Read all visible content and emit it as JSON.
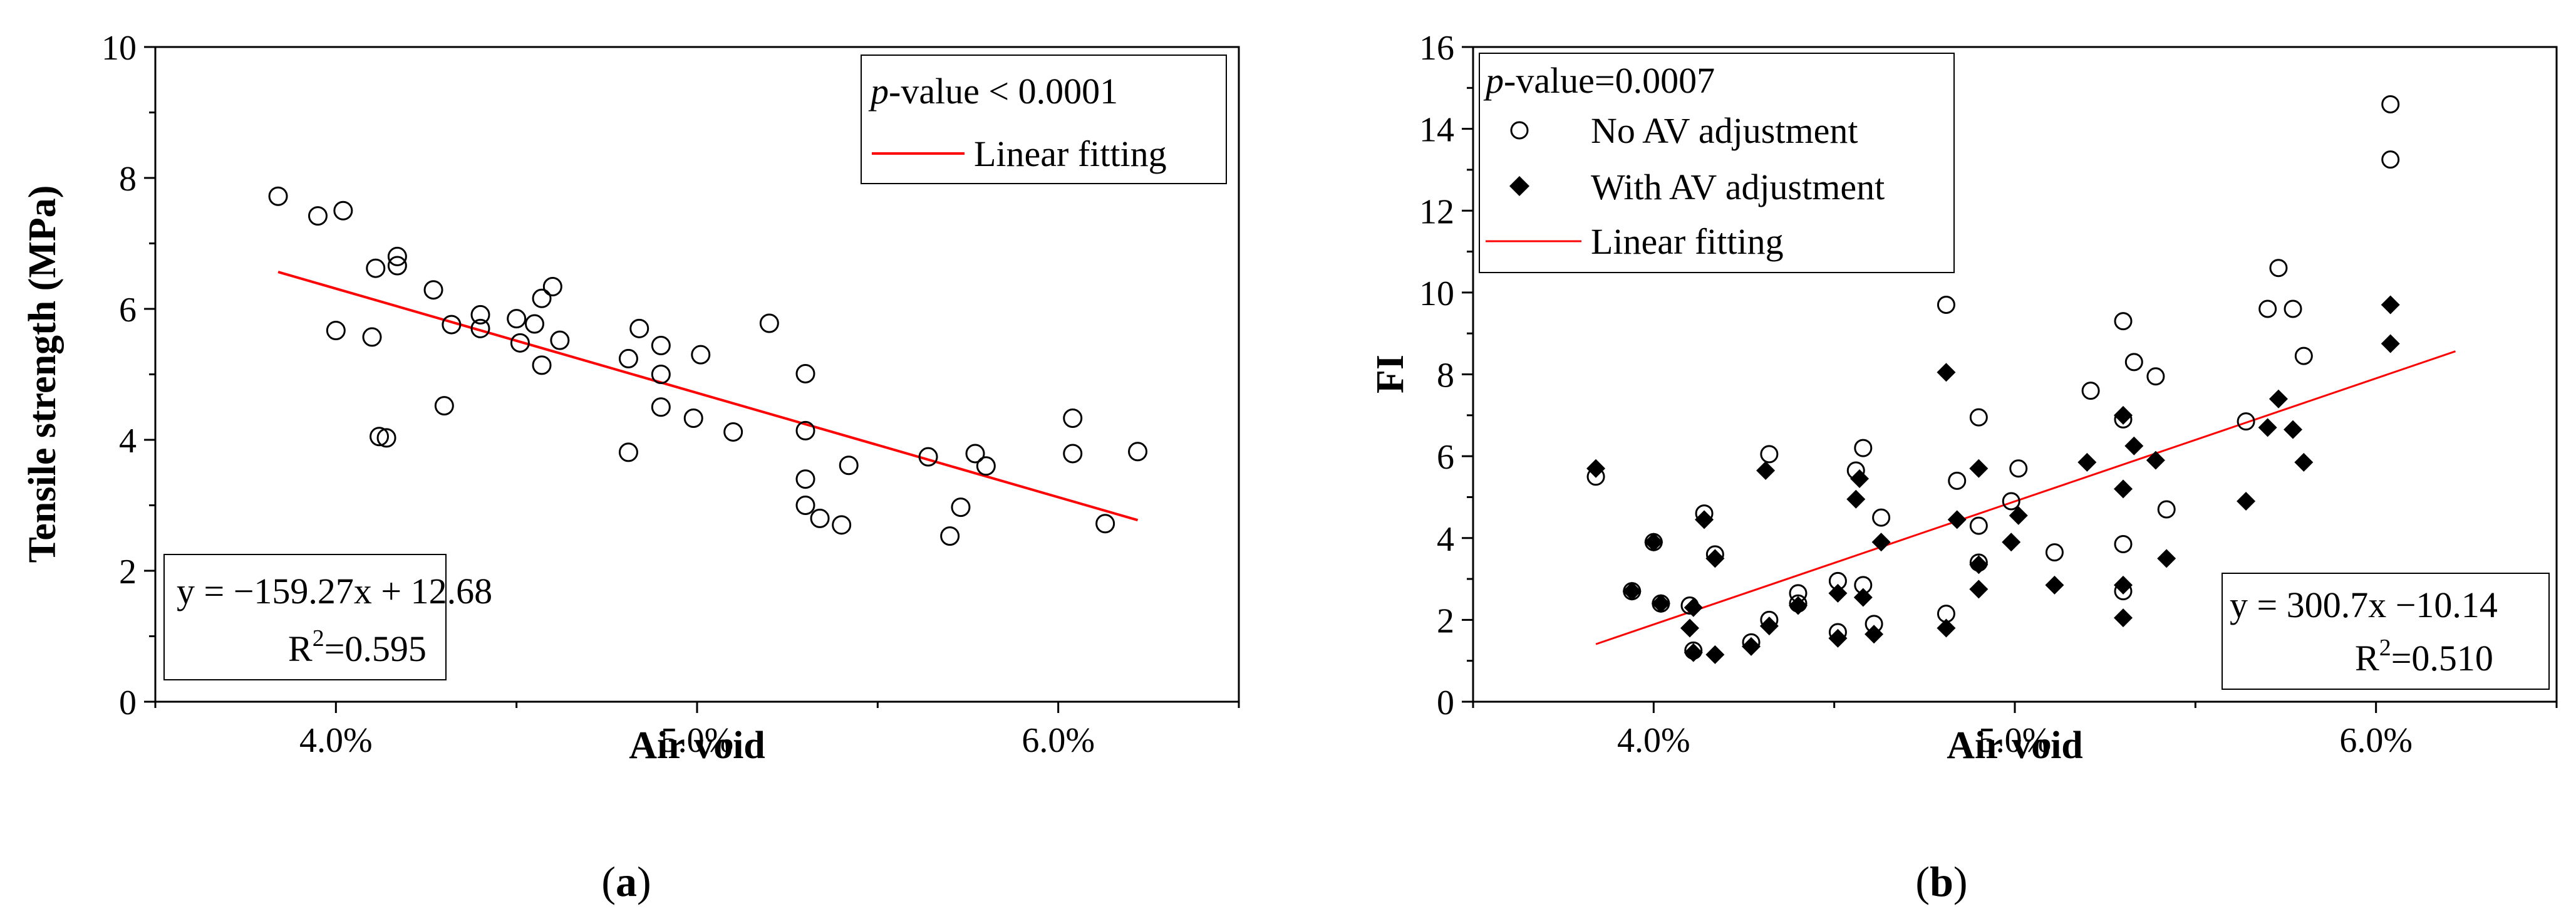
{
  "chart_data": [
    {
      "panel_label": "a",
      "type": "scatter",
      "xlabel": "Air void",
      "ylabel": "Tensile strength (MPa)",
      "xlim": [
        3.5,
        6.5
      ],
      "ylim": [
        0,
        10
      ],
      "x_ticks": [
        4.0,
        5.0,
        6.0
      ],
      "x_tick_labels": [
        "4.0%",
        "5.0%",
        "6.0%"
      ],
      "y_ticks": [
        0,
        2,
        4,
        6,
        8,
        10
      ],
      "y_tick_labels": [
        "0",
        "2",
        "4",
        "6",
        "8",
        "10"
      ],
      "legend": {
        "pvalue_prefix": "p",
        "pvalue_suffix": "-value < 0.0001",
        "line_label": "Linear fitting",
        "line_color": "#ff0000"
      },
      "equation": "y = −159.27x + 12.68",
      "r2_prefix": "R",
      "r2_sup": "2",
      "r2_value": "=0.595",
      "fit": {
        "slope": -1.5927,
        "intercept": 12.68,
        "x_start": 3.84,
        "x_end": 6.22
      },
      "series": [
        {
          "name": "Data",
          "marker": "open-circle",
          "points": [
            [
              3.84,
              7.72
            ],
            [
              3.95,
              7.42
            ],
            [
              4.02,
              7.5
            ],
            [
              4.0,
              5.67
            ],
            [
              4.1,
              5.57
            ],
            [
              4.11,
              6.62
            ],
            [
              4.17,
              6.8
            ],
            [
              4.17,
              6.66
            ],
            [
              4.12,
              4.05
            ],
            [
              4.14,
              4.03
            ],
            [
              4.27,
              6.29
            ],
            [
              4.3,
              4.52
            ],
            [
              4.32,
              5.76
            ],
            [
              4.4,
              5.91
            ],
            [
              4.4,
              5.7
            ],
            [
              4.5,
              5.85
            ],
            [
              4.51,
              5.48
            ],
            [
              4.55,
              5.77
            ],
            [
              4.57,
              6.16
            ],
            [
              4.57,
              5.14
            ],
            [
              4.6,
              6.34
            ],
            [
              4.62,
              5.52
            ],
            [
              4.81,
              5.24
            ],
            [
              4.81,
              3.81
            ],
            [
              4.84,
              5.7
            ],
            [
              4.9,
              5.44
            ],
            [
              4.9,
              5.0
            ],
            [
              4.9,
              4.5
            ],
            [
              4.99,
              4.33
            ],
            [
              5.01,
              5.3
            ],
            [
              5.1,
              4.12
            ],
            [
              5.2,
              5.78
            ],
            [
              5.3,
              5.01
            ],
            [
              5.3,
              4.14
            ],
            [
              5.3,
              3.4
            ],
            [
              5.3,
              3.0
            ],
            [
              5.34,
              2.8
            ],
            [
              5.4,
              2.7
            ],
            [
              5.42,
              3.61
            ],
            [
              5.64,
              3.74
            ],
            [
              5.7,
              2.53
            ],
            [
              5.73,
              2.97
            ],
            [
              5.77,
              3.79
            ],
            [
              5.8,
              3.6
            ],
            [
              6.04,
              4.33
            ],
            [
              6.04,
              3.79
            ],
            [
              6.13,
              2.72
            ],
            [
              6.22,
              3.82
            ]
          ]
        }
      ]
    },
    {
      "panel_label": "b",
      "type": "scatter",
      "xlabel": "Air void",
      "ylabel": "FI",
      "xlim": [
        3.5,
        6.5
      ],
      "ylim": [
        0,
        16
      ],
      "x_ticks": [
        4.0,
        5.0,
        6.0
      ],
      "x_tick_labels": [
        "4.0%",
        "5.0%",
        "6.0%"
      ],
      "y_ticks": [
        0,
        2,
        4,
        6,
        8,
        10,
        12,
        14,
        16
      ],
      "y_tick_labels": [
        "0",
        "2",
        "4",
        "6",
        "8",
        "10",
        "12",
        "14",
        "16"
      ],
      "legend": {
        "pvalue_prefix": "p",
        "pvalue_suffix": "-value=0.0007",
        "series1_label": "No AV adjustment",
        "series2_label": "With AV adjustment",
        "line_label": "Linear fitting",
        "line_color": "#ff0000"
      },
      "equation": "y = 300.7x −10.14",
      "r2_prefix": "R",
      "r2_sup": "2",
      "r2_value": "=0.510",
      "fit": {
        "slope": 3.007,
        "intercept": -10.14,
        "x_start": 3.84,
        "x_end": 6.22
      },
      "series": [
        {
          "name": "No AV adjustment",
          "marker": "open-circle",
          "points": [
            [
              3.84,
              5.5
            ],
            [
              3.94,
              2.7
            ],
            [
              4.0,
              3.9
            ],
            [
              4.02,
              2.4
            ],
            [
              4.1,
              2.35
            ],
            [
              4.11,
              1.25
            ],
            [
              4.14,
              4.6
            ],
            [
              4.17,
              3.6
            ],
            [
              4.27,
              1.45
            ],
            [
              4.32,
              6.05
            ],
            [
              4.32,
              2.0
            ],
            [
              4.4,
              2.65
            ],
            [
              4.4,
              2.4
            ],
            [
              4.51,
              2.95
            ],
            [
              4.51,
              1.7
            ],
            [
              4.56,
              5.65
            ],
            [
              4.58,
              6.2
            ],
            [
              4.58,
              2.85
            ],
            [
              4.61,
              1.9
            ],
            [
              4.63,
              4.5
            ],
            [
              4.81,
              9.7
            ],
            [
              4.81,
              2.15
            ],
            [
              4.84,
              5.4
            ],
            [
              4.9,
              6.95
            ],
            [
              4.9,
              4.3
            ],
            [
              4.9,
              3.4
            ],
            [
              4.99,
              4.9
            ],
            [
              5.01,
              5.7
            ],
            [
              5.11,
              3.65
            ],
            [
              5.21,
              7.6
            ],
            [
              5.3,
              9.3
            ],
            [
              5.3,
              6.9
            ],
            [
              5.3,
              3.85
            ],
            [
              5.3,
              2.7
            ],
            [
              5.33,
              8.3
            ],
            [
              5.39,
              7.95
            ],
            [
              5.42,
              4.7
            ],
            [
              5.64,
              6.85
            ],
            [
              5.7,
              9.6
            ],
            [
              5.73,
              10.6
            ],
            [
              5.77,
              9.6
            ],
            [
              5.8,
              8.45
            ],
            [
              6.04,
              14.6
            ],
            [
              6.04,
              13.25
            ]
          ]
        },
        {
          "name": "With AV adjustment",
          "marker": "filled-diamond",
          "points": [
            [
              3.84,
              5.7
            ],
            [
              3.94,
              2.7
            ],
            [
              4.0,
              3.9
            ],
            [
              4.02,
              2.4
            ],
            [
              4.1,
              1.8
            ],
            [
              4.11,
              2.3
            ],
            [
              4.11,
              1.2
            ],
            [
              4.14,
              4.45
            ],
            [
              4.17,
              3.5
            ],
            [
              4.17,
              1.15
            ],
            [
              4.27,
              1.35
            ],
            [
              4.31,
              5.65
            ],
            [
              4.32,
              1.85
            ],
            [
              4.4,
              2.35
            ],
            [
              4.51,
              2.65
            ],
            [
              4.51,
              1.55
            ],
            [
              4.56,
              4.95
            ],
            [
              4.57,
              5.45
            ],
            [
              4.58,
              2.55
            ],
            [
              4.61,
              1.65
            ],
            [
              4.63,
              3.9
            ],
            [
              4.81,
              8.05
            ],
            [
              4.81,
              1.8
            ],
            [
              4.84,
              4.45
            ],
            [
              4.9,
              5.7
            ],
            [
              4.9,
              3.35
            ],
            [
              4.9,
              2.75
            ],
            [
              4.99,
              3.9
            ],
            [
              5.01,
              4.55
            ],
            [
              5.11,
              2.85
            ],
            [
              5.2,
              5.85
            ],
            [
              5.3,
              7.0
            ],
            [
              5.3,
              5.2
            ],
            [
              5.3,
              2.85
            ],
            [
              5.3,
              2.05
            ],
            [
              5.33,
              6.25
            ],
            [
              5.39,
              5.9
            ],
            [
              5.42,
              3.5
            ],
            [
              5.64,
              4.9
            ],
            [
              5.7,
              6.7
            ],
            [
              5.73,
              7.4
            ],
            [
              5.77,
              6.65
            ],
            [
              5.8,
              5.85
            ],
            [
              6.04,
              9.7
            ],
            [
              6.04,
              8.75
            ]
          ]
        }
      ]
    }
  ]
}
